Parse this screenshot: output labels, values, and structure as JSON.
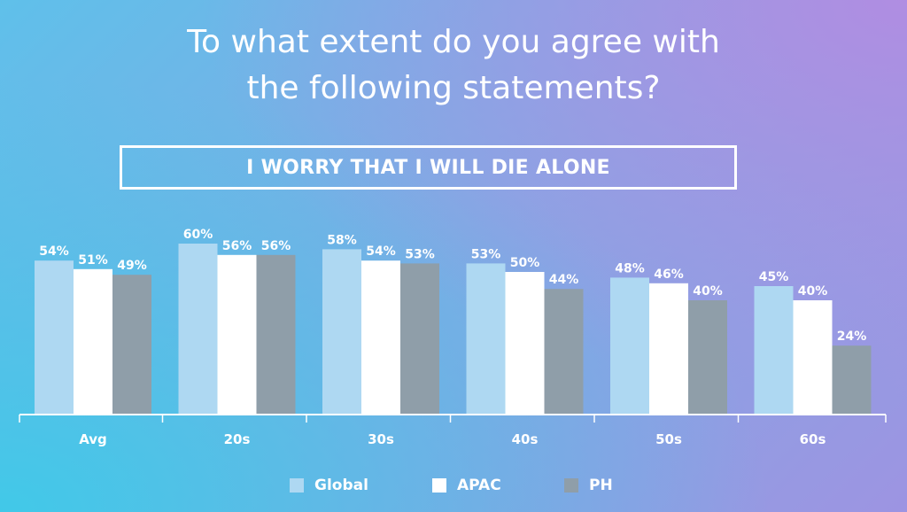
{
  "header": {
    "title_line1": "To what extent do you agree with",
    "title_line2": "the following statements?",
    "statement": "I WORRY THAT I WILL DIE ALONE"
  },
  "colors": {
    "global": "#aed8f2",
    "apac": "#ffffff",
    "ph": "#8f9ea9",
    "text": "#ffffff",
    "axis": "#ffffff"
  },
  "chart_data": {
    "type": "bar",
    "title": "I WORRY THAT I WILL DIE ALONE",
    "categories": [
      "Avg",
      "20s",
      "30s",
      "40s",
      "50s",
      "60s"
    ],
    "series": [
      {
        "name": "Global",
        "values": [
          54,
          60,
          58,
          53,
          48,
          45
        ]
      },
      {
        "name": "APAC",
        "values": [
          51,
          56,
          54,
          50,
          46,
          40
        ]
      },
      {
        "name": "PH",
        "values": [
          49,
          56,
          53,
          44,
          40,
          24
        ]
      }
    ],
    "value_suffix": "%",
    "ylim": [
      0,
      60
    ],
    "grid": false,
    "legend_position": "bottom"
  }
}
